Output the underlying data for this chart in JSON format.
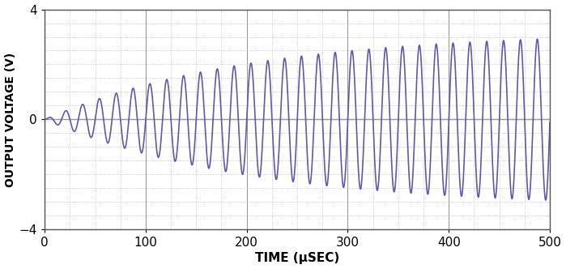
{
  "title": "",
  "xlabel": "TIME (μSEC)",
  "ylabel": "OUTPUT VOLTAGE (V)",
  "xlim": [
    0,
    500
  ],
  "ylim": [
    -4,
    4
  ],
  "xticks": [
    0,
    100,
    200,
    300,
    400,
    500
  ],
  "yticks": [
    -4,
    0,
    4
  ],
  "line_color": "#6655aa",
  "line_width": 1.2,
  "background_color": "#ffffff",
  "fig_facecolor": "#ffffff",
  "period_usec": 16.67,
  "time_constant_usec": 200.0,
  "final_amplitude": 3.2,
  "num_points": 10000,
  "t_end": 500,
  "minor_x_spacing": 25,
  "minor_y_spacing": 0.5,
  "grid_dot_color": "#bbbbbb",
  "major_line_color": "#999999",
  "xlabel_fontsize": 11,
  "ylabel_fontsize": 10,
  "tick_fontsize": 11,
  "xlabel_fontweight": "bold",
  "ylabel_fontweight": "bold"
}
